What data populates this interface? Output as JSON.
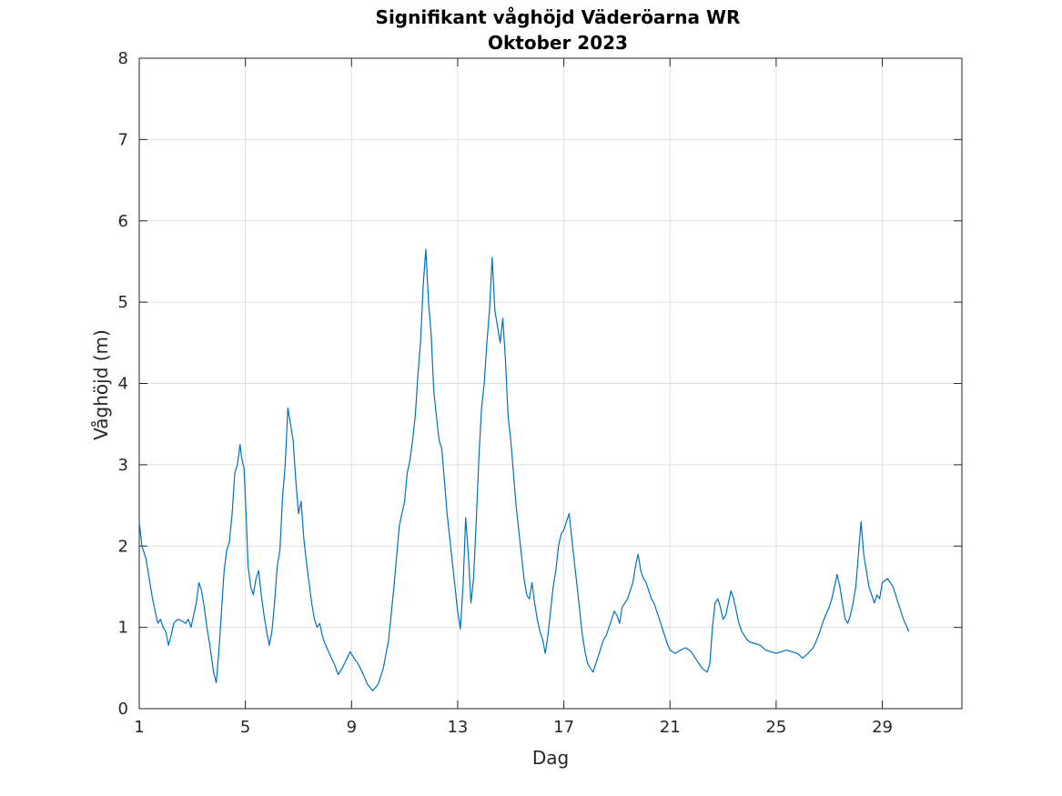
{
  "chart_data": {
    "type": "line",
    "title": "Signifikant våghöjd Väderöarna WR",
    "subtitle": "Oktober 2023",
    "xlabel": "Dag",
    "ylabel": "Våghöjd (m)",
    "xlim": [
      1,
      32
    ],
    "ylim": [
      0,
      8
    ],
    "x_ticks": [
      1,
      5,
      9,
      13,
      17,
      21,
      25,
      29
    ],
    "y_ticks": [
      0,
      1,
      2,
      3,
      4,
      5,
      6,
      7,
      8
    ],
    "grid": true,
    "colors": {
      "series": "#0072bd"
    },
    "series": [
      {
        "points": [
          [
            1.0,
            2.3
          ],
          [
            1.1,
            2.0
          ],
          [
            1.25,
            1.85
          ],
          [
            1.4,
            1.55
          ],
          [
            1.5,
            1.35
          ],
          [
            1.6,
            1.2
          ],
          [
            1.7,
            1.05
          ],
          [
            1.8,
            1.1
          ],
          [
            1.9,
            1.0
          ],
          [
            2.0,
            0.95
          ],
          [
            2.1,
            0.78
          ],
          [
            2.2,
            0.9
          ],
          [
            2.3,
            1.05
          ],
          [
            2.45,
            1.1
          ],
          [
            2.6,
            1.08
          ],
          [
            2.75,
            1.05
          ],
          [
            2.85,
            1.1
          ],
          [
            2.95,
            1.0
          ],
          [
            3.05,
            1.15
          ],
          [
            3.15,
            1.3
          ],
          [
            3.25,
            1.55
          ],
          [
            3.35,
            1.45
          ],
          [
            3.45,
            1.25
          ],
          [
            3.55,
            1.0
          ],
          [
            3.65,
            0.8
          ],
          [
            3.8,
            0.45
          ],
          [
            3.9,
            0.32
          ],
          [
            4.0,
            0.7
          ],
          [
            4.1,
            1.2
          ],
          [
            4.2,
            1.7
          ],
          [
            4.3,
            1.95
          ],
          [
            4.4,
            2.05
          ],
          [
            4.5,
            2.4
          ],
          [
            4.6,
            2.9
          ],
          [
            4.7,
            3.0
          ],
          [
            4.8,
            3.25
          ],
          [
            4.85,
            3.1
          ],
          [
            4.95,
            2.95
          ],
          [
            5.0,
            2.6
          ],
          [
            5.05,
            2.2
          ],
          [
            5.1,
            1.75
          ],
          [
            5.2,
            1.5
          ],
          [
            5.3,
            1.4
          ],
          [
            5.4,
            1.6
          ],
          [
            5.5,
            1.7
          ],
          [
            5.6,
            1.4
          ],
          [
            5.7,
            1.15
          ],
          [
            5.8,
            0.95
          ],
          [
            5.9,
            0.78
          ],
          [
            6.0,
            0.95
          ],
          [
            6.1,
            1.3
          ],
          [
            6.2,
            1.75
          ],
          [
            6.3,
            1.95
          ],
          [
            6.4,
            2.6
          ],
          [
            6.5,
            3.0
          ],
          [
            6.6,
            3.7
          ],
          [
            6.7,
            3.5
          ],
          [
            6.8,
            3.3
          ],
          [
            6.9,
            2.8
          ],
          [
            7.0,
            2.4
          ],
          [
            7.1,
            2.55
          ],
          [
            7.2,
            2.1
          ],
          [
            7.3,
            1.8
          ],
          [
            7.4,
            1.55
          ],
          [
            7.5,
            1.3
          ],
          [
            7.6,
            1.1
          ],
          [
            7.7,
            1.0
          ],
          [
            7.8,
            1.05
          ],
          [
            7.9,
            0.9
          ],
          [
            8.0,
            0.8
          ],
          [
            8.2,
            0.65
          ],
          [
            8.35,
            0.55
          ],
          [
            8.5,
            0.42
          ],
          [
            8.65,
            0.5
          ],
          [
            8.8,
            0.6
          ],
          [
            8.95,
            0.7
          ],
          [
            9.1,
            0.62
          ],
          [
            9.25,
            0.55
          ],
          [
            9.4,
            0.45
          ],
          [
            9.6,
            0.3
          ],
          [
            9.8,
            0.22
          ],
          [
            10.0,
            0.3
          ],
          [
            10.2,
            0.5
          ],
          [
            10.4,
            0.85
          ],
          [
            10.6,
            1.5
          ],
          [
            10.8,
            2.25
          ],
          [
            11.0,
            2.55
          ],
          [
            11.1,
            2.9
          ],
          [
            11.2,
            3.05
          ],
          [
            11.3,
            3.3
          ],
          [
            11.4,
            3.6
          ],
          [
            11.5,
            4.1
          ],
          [
            11.6,
            4.5
          ],
          [
            11.7,
            5.2
          ],
          [
            11.8,
            5.65
          ],
          [
            11.9,
            5.0
          ],
          [
            12.0,
            4.6
          ],
          [
            12.1,
            3.9
          ],
          [
            12.2,
            3.6
          ],
          [
            12.3,
            3.3
          ],
          [
            12.4,
            3.2
          ],
          [
            12.5,
            2.8
          ],
          [
            12.6,
            2.4
          ],
          [
            12.7,
            2.1
          ],
          [
            12.8,
            1.8
          ],
          [
            12.9,
            1.5
          ],
          [
            13.0,
            1.2
          ],
          [
            13.1,
            0.98
          ],
          [
            13.2,
            1.5
          ],
          [
            13.3,
            2.35
          ],
          [
            13.4,
            1.9
          ],
          [
            13.5,
            1.3
          ],
          [
            13.6,
            1.6
          ],
          [
            13.7,
            2.3
          ],
          [
            13.8,
            3.1
          ],
          [
            13.9,
            3.7
          ],
          [
            14.0,
            4.0
          ],
          [
            14.1,
            4.5
          ],
          [
            14.2,
            4.9
          ],
          [
            14.3,
            5.55
          ],
          [
            14.4,
            4.9
          ],
          [
            14.5,
            4.7
          ],
          [
            14.6,
            4.5
          ],
          [
            14.7,
            4.8
          ],
          [
            14.8,
            4.3
          ],
          [
            14.9,
            3.6
          ],
          [
            15.0,
            3.3
          ],
          [
            15.1,
            2.9
          ],
          [
            15.2,
            2.5
          ],
          [
            15.3,
            2.2
          ],
          [
            15.4,
            1.9
          ],
          [
            15.5,
            1.6
          ],
          [
            15.6,
            1.4
          ],
          [
            15.7,
            1.35
          ],
          [
            15.8,
            1.55
          ],
          [
            15.9,
            1.3
          ],
          [
            16.0,
            1.1
          ],
          [
            16.1,
            0.95
          ],
          [
            16.2,
            0.85
          ],
          [
            16.3,
            0.68
          ],
          [
            16.4,
            0.9
          ],
          [
            16.5,
            1.2
          ],
          [
            16.6,
            1.5
          ],
          [
            16.7,
            1.7
          ],
          [
            16.8,
            2.0
          ],
          [
            16.9,
            2.15
          ],
          [
            17.0,
            2.2
          ],
          [
            17.1,
            2.3
          ],
          [
            17.2,
            2.4
          ],
          [
            17.3,
            2.1
          ],
          [
            17.4,
            1.8
          ],
          [
            17.5,
            1.5
          ],
          [
            17.6,
            1.2
          ],
          [
            17.7,
            0.9
          ],
          [
            17.8,
            0.7
          ],
          [
            17.9,
            0.55
          ],
          [
            18.0,
            0.5
          ],
          [
            18.1,
            0.45
          ],
          [
            18.2,
            0.55
          ],
          [
            18.3,
            0.65
          ],
          [
            18.4,
            0.75
          ],
          [
            18.5,
            0.85
          ],
          [
            18.6,
            0.9
          ],
          [
            18.7,
            1.0
          ],
          [
            18.8,
            1.1
          ],
          [
            18.9,
            1.2
          ],
          [
            19.0,
            1.15
          ],
          [
            19.1,
            1.05
          ],
          [
            19.2,
            1.25
          ],
          [
            19.3,
            1.3
          ],
          [
            19.4,
            1.35
          ],
          [
            19.5,
            1.45
          ],
          [
            19.6,
            1.55
          ],
          [
            19.7,
            1.75
          ],
          [
            19.8,
            1.9
          ],
          [
            19.9,
            1.7
          ],
          [
            20.0,
            1.6
          ],
          [
            20.1,
            1.55
          ],
          [
            20.2,
            1.45
          ],
          [
            20.3,
            1.35
          ],
          [
            20.4,
            1.3
          ],
          [
            20.5,
            1.2
          ],
          [
            20.6,
            1.1
          ],
          [
            20.7,
            1.0
          ],
          [
            20.8,
            0.9
          ],
          [
            20.9,
            0.8
          ],
          [
            21.0,
            0.72
          ],
          [
            21.2,
            0.68
          ],
          [
            21.4,
            0.72
          ],
          [
            21.6,
            0.75
          ],
          [
            21.8,
            0.7
          ],
          [
            22.0,
            0.6
          ],
          [
            22.2,
            0.5
          ],
          [
            22.4,
            0.45
          ],
          [
            22.5,
            0.55
          ],
          [
            22.6,
            1.0
          ],
          [
            22.7,
            1.3
          ],
          [
            22.8,
            1.35
          ],
          [
            22.9,
            1.25
          ],
          [
            23.0,
            1.1
          ],
          [
            23.1,
            1.15
          ],
          [
            23.2,
            1.3
          ],
          [
            23.3,
            1.45
          ],
          [
            23.4,
            1.35
          ],
          [
            23.5,
            1.2
          ],
          [
            23.6,
            1.05
          ],
          [
            23.7,
            0.95
          ],
          [
            23.8,
            0.9
          ],
          [
            23.9,
            0.85
          ],
          [
            24.0,
            0.82
          ],
          [
            24.2,
            0.8
          ],
          [
            24.4,
            0.78
          ],
          [
            24.6,
            0.72
          ],
          [
            24.8,
            0.7
          ],
          [
            25.0,
            0.68
          ],
          [
            25.2,
            0.7
          ],
          [
            25.4,
            0.72
          ],
          [
            25.6,
            0.7
          ],
          [
            25.8,
            0.68
          ],
          [
            26.0,
            0.62
          ],
          [
            26.2,
            0.68
          ],
          [
            26.4,
            0.75
          ],
          [
            26.6,
            0.9
          ],
          [
            26.8,
            1.1
          ],
          [
            27.0,
            1.25
          ],
          [
            27.1,
            1.35
          ],
          [
            27.2,
            1.5
          ],
          [
            27.3,
            1.65
          ],
          [
            27.4,
            1.5
          ],
          [
            27.5,
            1.3
          ],
          [
            27.6,
            1.1
          ],
          [
            27.7,
            1.05
          ],
          [
            27.8,
            1.15
          ],
          [
            27.9,
            1.3
          ],
          [
            28.0,
            1.5
          ],
          [
            28.1,
            1.9
          ],
          [
            28.2,
            2.3
          ],
          [
            28.3,
            1.9
          ],
          [
            28.4,
            1.7
          ],
          [
            28.5,
            1.5
          ],
          [
            28.6,
            1.4
          ],
          [
            28.7,
            1.3
          ],
          [
            28.8,
            1.4
          ],
          [
            28.9,
            1.35
          ],
          [
            29.0,
            1.55
          ],
          [
            29.2,
            1.6
          ],
          [
            29.4,
            1.5
          ],
          [
            29.6,
            1.3
          ],
          [
            29.8,
            1.1
          ],
          [
            30.0,
            0.95
          ]
        ]
      }
    ]
  }
}
